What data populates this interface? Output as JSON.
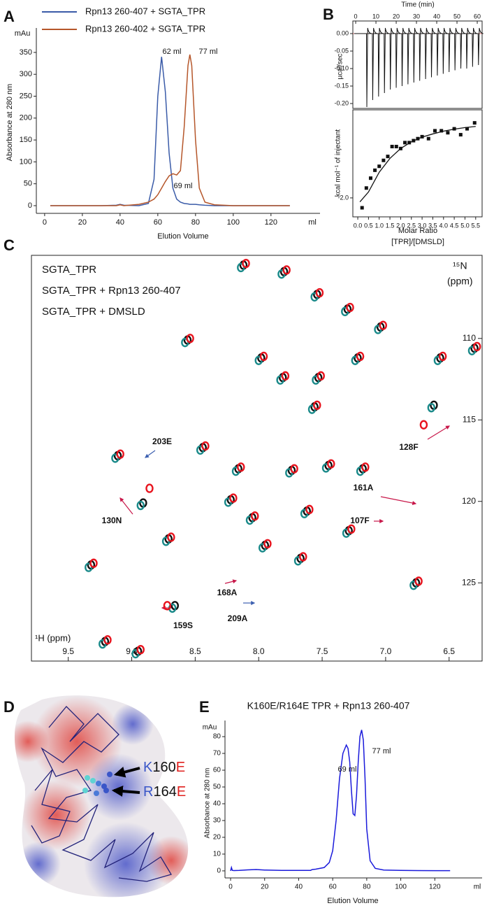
{
  "chart_data": [
    {
      "panel": "A",
      "type": "line",
      "y_label": "Absorbance at 280 nm",
      "x_label": "Elution Volume",
      "y_unit": "mAu",
      "x_unit": "ml",
      "xlim": [
        -4.4,
        146
      ],
      "ylim": [
        -17.6,
        405.8
      ],
      "xticks": [
        0,
        20,
        40,
        60,
        80,
        100,
        120
      ],
      "yticks": [
        0,
        50,
        100,
        150,
        200,
        250,
        300,
        350
      ],
      "x": [
        3,
        10,
        20,
        30,
        38,
        40,
        42,
        50,
        55,
        58,
        60,
        62,
        64,
        66,
        68,
        70,
        72,
        74,
        76,
        77,
        78,
        80,
        82,
        85,
        90,
        100,
        110,
        120,
        130
      ],
      "series": [
        {
          "name": "Rpn13 260-407 + SGTA_TPR",
          "color": "#3a5ba8",
          "values": [
            0,
            0,
            0,
            0,
            1,
            3,
            1,
            0,
            5,
            60,
            250,
            340,
            260,
            120,
            40,
            15,
            8,
            5,
            4,
            3,
            3,
            3,
            2,
            1,
            0,
            0,
            0,
            0,
            0
          ]
        },
        {
          "name": "Rpn13 260-402 + SGTA_TPR",
          "color": "#b5562a",
          "values": [
            0,
            0,
            0,
            0,
            0,
            2,
            0,
            3,
            8,
            15,
            25,
            40,
            55,
            68,
            73,
            70,
            80,
            180,
            320,
            345,
            320,
            150,
            40,
            8,
            2,
            0,
            0,
            0,
            0
          ]
        }
      ],
      "annotations": [
        "62 ml",
        "77 ml",
        "69 ml"
      ]
    },
    {
      "panel": "B",
      "type": "spike",
      "x_label": "Time (min)",
      "y_label": "µcal/sec",
      "xlim": [
        -1.4,
        62.4
      ],
      "ylim": [
        -0.214,
        0.036
      ],
      "xticks": [
        0,
        10,
        20,
        30,
        40,
        50,
        60
      ],
      "yticks": [
        {
          "value": 0,
          "label": "0.00"
        },
        -0.05,
        {
          "value": -0.1,
          "label": "-0.10"
        },
        -0.15,
        {
          "value": -0.2,
          "label": "-0.20"
        }
      ],
      "color": "#111111",
      "baseline_color": "#d9534f",
      "x": [
        5.5,
        8.4,
        11.3,
        14.2,
        17.1,
        20,
        22.9,
        25.8,
        28.7,
        31.6,
        34.5,
        37.4,
        40.3,
        43.2,
        46.1,
        49,
        51.9,
        54.8,
        57.7,
        60.6
      ],
      "values": [
        -0.21,
        -0.19,
        -0.18,
        -0.17,
        -0.16,
        -0.155,
        -0.15,
        -0.145,
        -0.14,
        -0.135,
        -0.13,
        -0.125,
        -0.12,
        -0.115,
        -0.11,
        -0.105,
        -0.1,
        -0.1,
        -0.095,
        -0.09
      ]
    },
    {
      "type": "scatter",
      "y_label": "kcal mol⁻¹ of injectant",
      "x_label": [
        "Molar Ratio",
        "[TPR]/[DMSLD]"
      ],
      "xlim": [
        -0.23,
        5.8
      ],
      "ylim": [
        -2.48,
        0.23
      ],
      "xticks": [
        {
          "value": 0,
          "label": "0.0"
        },
        0.5,
        {
          "value": 1,
          "label": "1.0"
        },
        1.5,
        {
          "value": 2,
          "label": "2.0"
        },
        2.5,
        {
          "value": 3,
          "label": "3.0"
        },
        3.5,
        {
          "value": 4,
          "label": "4.0"
        },
        4.5,
        {
          "value": 5,
          "label": "5.0"
        },
        5.5
      ],
      "yticks": [
        {
          "value": -2,
          "label": "-2.0"
        }
      ],
      "series": [
        {
          "style": "markers",
          "marker": "square",
          "color": "#111111",
          "x": [
            0.2,
            0.4,
            0.6,
            0.8,
            1.0,
            1.2,
            1.4,
            1.6,
            1.8,
            2.0,
            2.2,
            2.4,
            2.6,
            2.8,
            3.0,
            3.3,
            3.6,
            3.9,
            4.2,
            4.5,
            4.8,
            5.1,
            5.45
          ],
          "values": [
            -2.25,
            -1.75,
            -1.5,
            -1.3,
            -1.2,
            -1.05,
            -0.95,
            -0.7,
            -0.7,
            -0.75,
            -0.6,
            -0.6,
            -0.55,
            -0.5,
            -0.45,
            -0.5,
            -0.3,
            -0.3,
            -0.35,
            -0.25,
            -0.4,
            -0.25,
            -0.1
          ]
        },
        {
          "style": "line",
          "color": "#111111",
          "x": [
            0.1,
            0.5,
            1,
            1.5,
            2,
            2.5,
            3,
            3.5,
            4,
            4.5,
            5,
            5.5
          ],
          "values": [
            -2.1,
            -1.85,
            -1.35,
            -1.0,
            -0.75,
            -0.58,
            -0.46,
            -0.38,
            -0.31,
            -0.26,
            -0.22,
            -0.19
          ]
        }
      ]
    },
    {
      "panel": "C",
      "type": "scatter",
      "x_label": "¹H (ppm)",
      "y_label": [
        "¹⁵N",
        "(ppm)"
      ],
      "xlim": [
        9.79,
        6.24
      ],
      "ylim": [
        129.8,
        104.9
      ],
      "xticks": [
        9.5,
        {
          "value": 9,
          "label": "9.0"
        },
        8.5,
        {
          "value": 8,
          "label": "8.0"
        },
        7.5,
        {
          "value": 7,
          "label": "7.0"
        },
        6.5
      ],
      "yticks": [
        110,
        115,
        120,
        125
      ],
      "series": [
        {
          "name": "SGTA_TPR",
          "style": "markers",
          "marker": "ellipse",
          "color": "#111111",
          "x": [
            8.12,
            7.8,
            7.54,
            7.3,
            7.04,
            8.56,
            7.98,
            7.22,
            7.81,
            7.53,
            6.57,
            6.3,
            7.56,
            6.62,
            9.11,
            8.44,
            8.16,
            7.74,
            7.45,
            7.18,
            8.91,
            8.22,
            8.05,
            7.62,
            7.29,
            8.71,
            7.95,
            7.67,
            9.32,
            6.76,
            8.66,
            9.21,
            8.95
          ],
          "values": [
            105.5,
            105.9,
            107.3,
            108.2,
            109.3,
            110.1,
            111.2,
            111.2,
            112.4,
            112.4,
            111.2,
            110.6,
            114.2,
            114.1,
            117.2,
            116.7,
            118.0,
            118.1,
            117.8,
            118.0,
            120.1,
            119.9,
            121.0,
            120.6,
            121.8,
            122.3,
            122.7,
            123.5,
            123.9,
            125.0,
            126.4,
            128.6,
            129.2
          ]
        },
        {
          "name": "SGTA_TPR + Rpn13 260-407",
          "style": "markers",
          "marker": "ellipse",
          "color": "#1a8a8a",
          "x": [
            8.14,
            7.82,
            7.56,
            7.32,
            7.06,
            8.58,
            8.0,
            7.24,
            7.83,
            7.55,
            6.59,
            6.32,
            7.58,
            6.64,
            9.13,
            8.46,
            8.18,
            7.76,
            7.47,
            7.2,
            8.93,
            8.24,
            8.07,
            7.64,
            7.31,
            8.73,
            7.97,
            7.69,
            9.34,
            6.78,
            8.68,
            9.23,
            8.97
          ],
          "values": [
            105.65,
            106.05,
            107.45,
            108.35,
            109.45,
            110.25,
            111.35,
            111.35,
            112.55,
            112.55,
            111.35,
            110.75,
            114.35,
            114.25,
            117.35,
            116.85,
            118.15,
            118.25,
            117.95,
            118.15,
            120.25,
            120.05,
            121.15,
            120.75,
            121.95,
            122.45,
            122.85,
            123.65,
            124.05,
            125.15,
            126.55,
            128.75,
            129.35
          ]
        },
        {
          "name": "SGTA_TPR + DMSLD",
          "style": "markers",
          "marker": "ellipse",
          "color": "#e8141e",
          "x": [
            8.1,
            7.78,
            7.52,
            7.28,
            7.02,
            8.54,
            7.96,
            7.2,
            7.79,
            7.51,
            6.55,
            6.28,
            7.54,
            6.7,
            9.09,
            8.42,
            8.14,
            7.72,
            7.43,
            7.16,
            8.86,
            8.2,
            8.03,
            7.6,
            7.27,
            8.69,
            7.93,
            7.65,
            9.3,
            6.74,
            8.72,
            9.19,
            8.93
          ],
          "values": [
            105.4,
            105.8,
            107.2,
            108.1,
            109.2,
            110.0,
            111.1,
            111.1,
            112.3,
            112.3,
            111.1,
            110.5,
            114.1,
            115.3,
            117.1,
            116.6,
            117.9,
            118.0,
            117.7,
            117.9,
            119.2,
            119.8,
            120.9,
            120.5,
            121.7,
            122.2,
            122.6,
            123.4,
            123.8,
            124.9,
            126.4,
            128.5,
            129.1
          ]
        }
      ],
      "annotations": [
        {
          "text": "203E",
          "color": "#3b5fb0"
        },
        {
          "text": "130N",
          "color": "#c8184a"
        },
        {
          "text": "128F",
          "color": "#c8184a"
        },
        {
          "text": "161A",
          "color": "#c8184a"
        },
        {
          "text": "107F",
          "color": "#c8184a"
        },
        {
          "text": "168A",
          "color": "#c8184a"
        },
        {
          "text": "159S",
          "color": "#c8184a"
        },
        {
          "text": "209A",
          "color": "#3b5fb0"
        }
      ]
    },
    {
      "panel": "E",
      "type": "line",
      "title": "K160E/R164E TPR + Rpn13 260-407",
      "title_color": "#1a1adb",
      "y_label": "Absorbance at 280 nm",
      "x_label": "Elution Volume",
      "y_unit": "mAu",
      "x_unit": "ml",
      "xlim": [
        -3.3,
        147.8
      ],
      "ylim": [
        -4.2,
        89.6
      ],
      "xticks": [
        0,
        20,
        40,
        60,
        80,
        100,
        120
      ],
      "yticks": [
        0,
        10,
        20,
        30,
        40,
        50,
        60,
        70,
        80
      ],
      "x": [
        0,
        0.5,
        1,
        2,
        5,
        10,
        15,
        20,
        30,
        40,
        47,
        48,
        50,
        55,
        58,
        60,
        62,
        64,
        66,
        68,
        69,
        70,
        71,
        72,
        73,
        74,
        75,
        76,
        77,
        78,
        79,
        80,
        82,
        85,
        90,
        100,
        110,
        120,
        129
      ],
      "series": [
        {
          "color": "#1a1adb",
          "values": [
            0,
            2,
            0.3,
            0.2,
            0.3,
            0.6,
            0.8,
            0.5,
            0.3,
            0.3,
            0.3,
            0.8,
            1,
            2,
            5,
            12,
            30,
            55,
            70,
            75,
            73,
            65,
            48,
            34,
            33,
            45,
            65,
            80,
            84,
            78,
            55,
            25,
            6,
            1.5,
            0.5,
            0.3,
            0.2,
            0.1,
            0.1
          ]
        }
      ],
      "annotations": [
        "69 ml",
        "77 ml"
      ]
    }
  ],
  "structure_panel": {
    "panel": "D",
    "mutations": [
      {
        "residue": "K",
        "position": "160",
        "mutant": "E"
      },
      {
        "residue": "R",
        "position": "164",
        "mutant": "E"
      }
    ]
  }
}
